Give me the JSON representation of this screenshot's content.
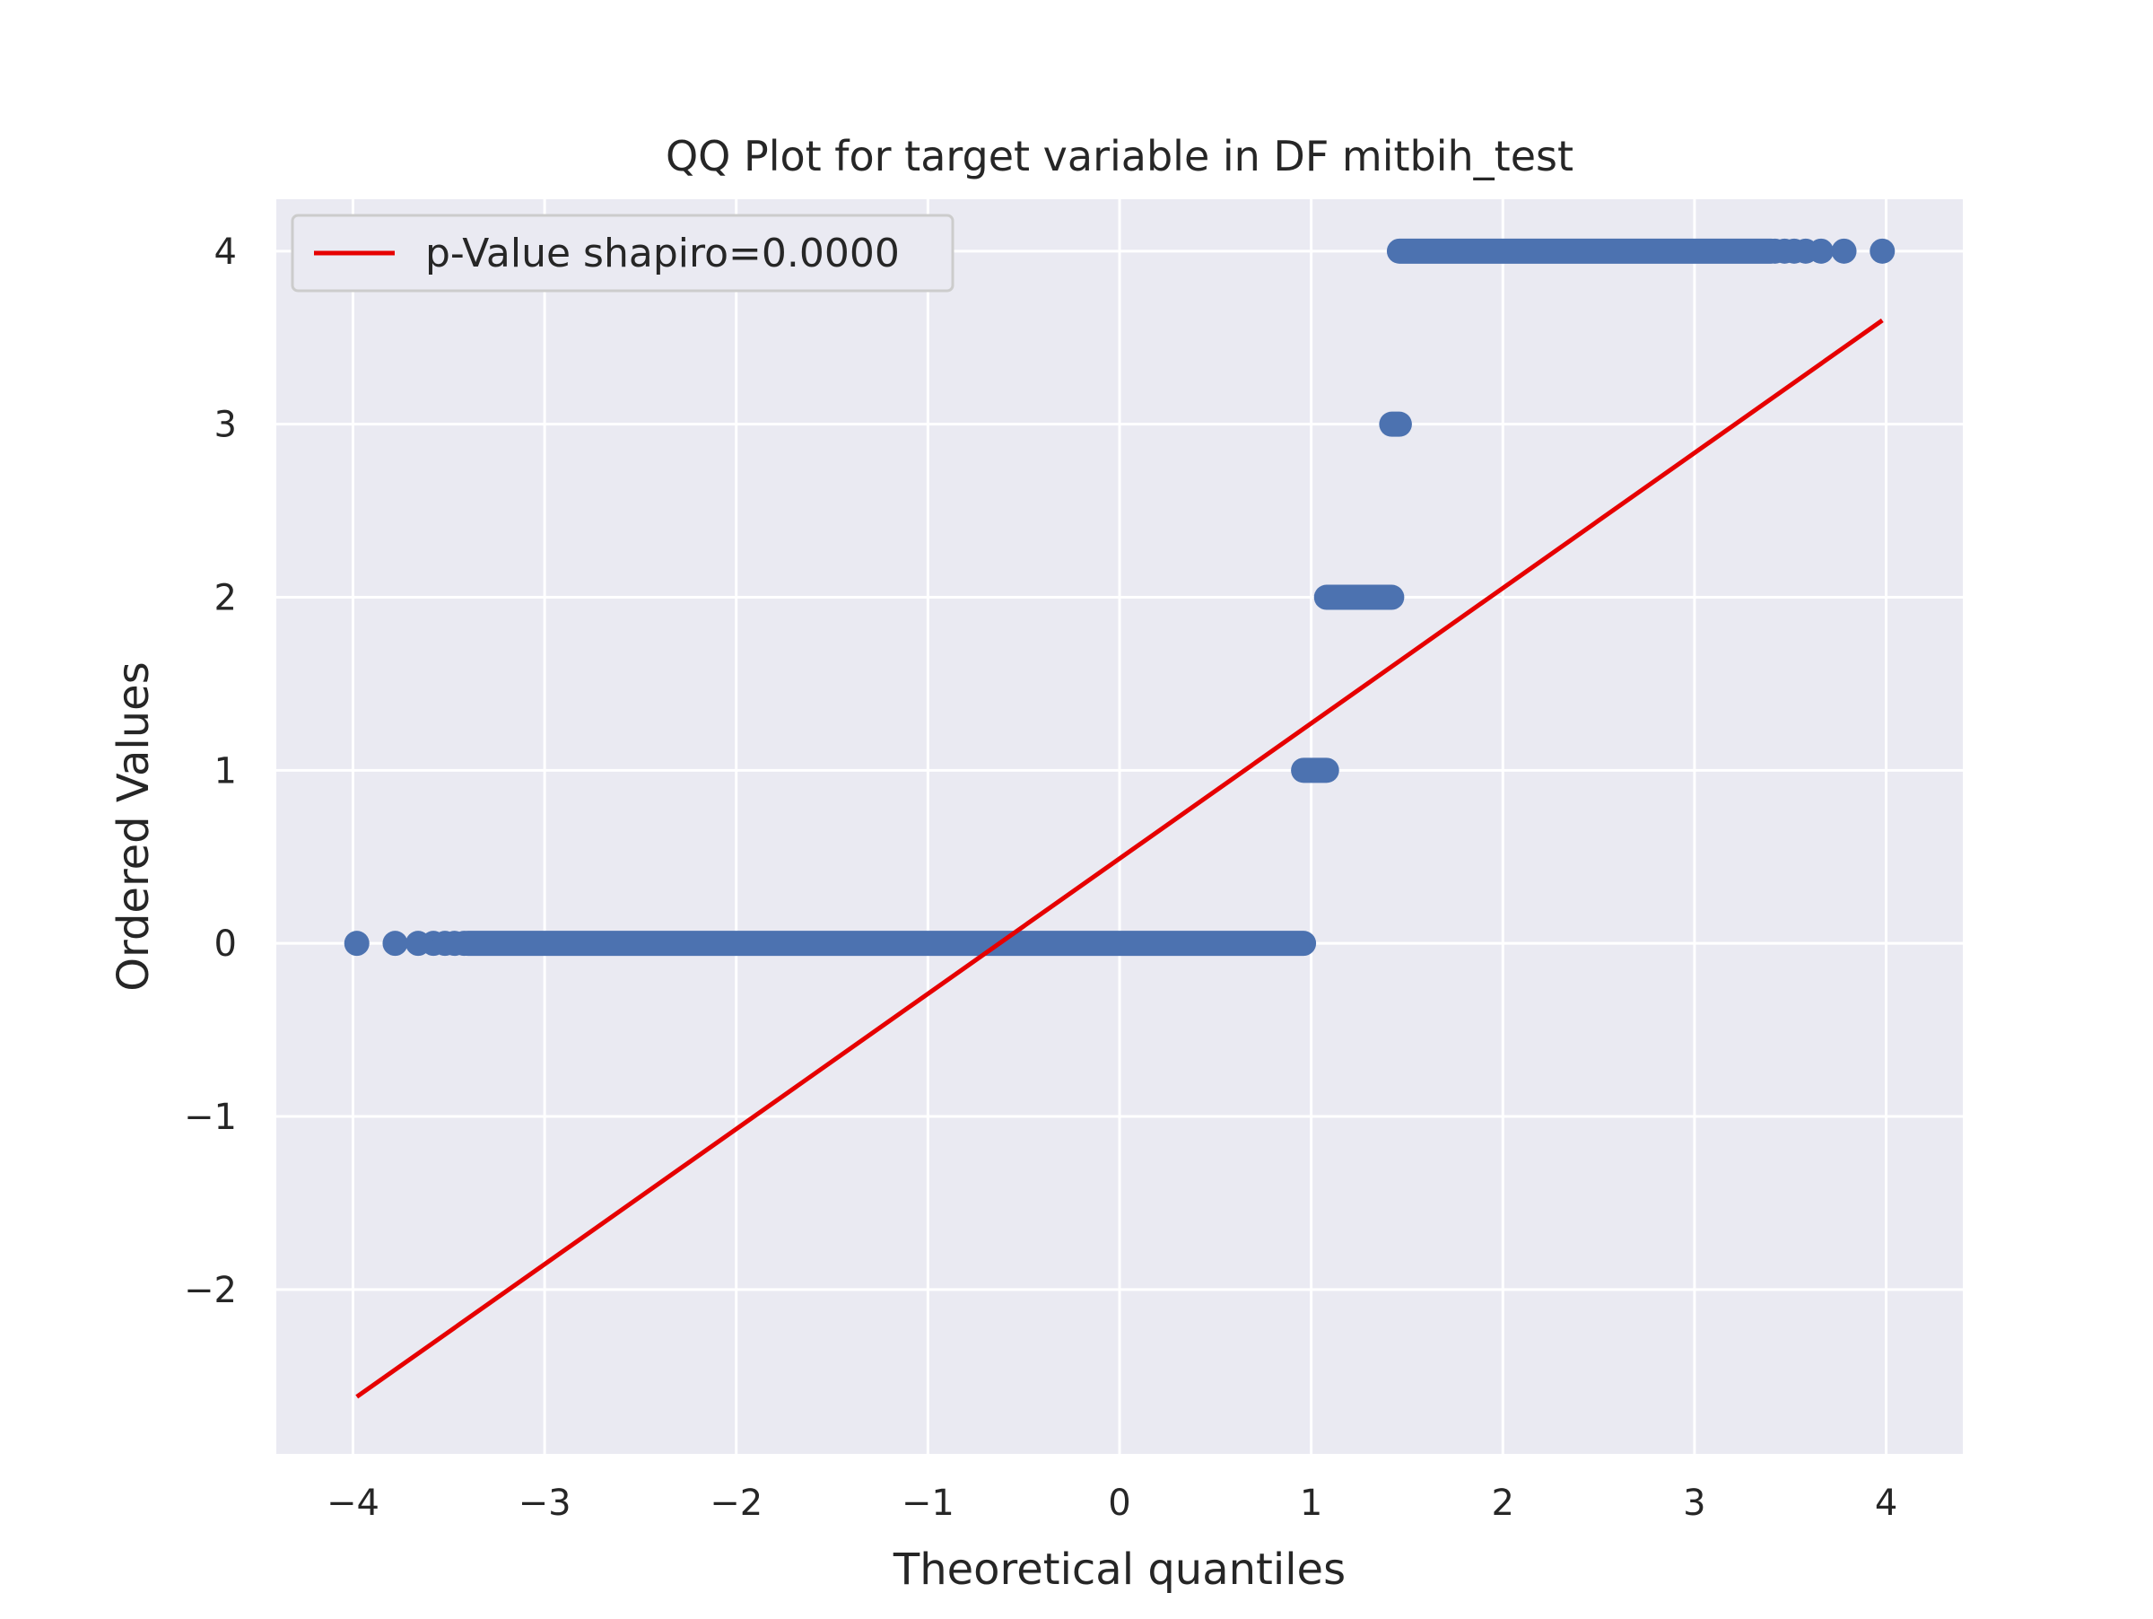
{
  "chart_data": {
    "type": "scatter",
    "title": "QQ Plot for target variable in DF mitbih_test",
    "xlabel": "Theoretical quantiles",
    "ylabel": "Ordered Values",
    "xlim": [
      -4.4,
      4.4
    ],
    "ylim": [
      -2.95,
      4.3
    ],
    "xticks": [
      -4,
      -3,
      -2,
      -1,
      0,
      1,
      2,
      3,
      4
    ],
    "xtick_labels": [
      "−4",
      "−3",
      "−2",
      "−1",
      "0",
      "1",
      "2",
      "3",
      "4"
    ],
    "yticks": [
      -2,
      -1,
      0,
      1,
      2,
      3,
      4
    ],
    "ytick_labels": [
      "−2",
      "−1",
      "0",
      "1",
      "2",
      "3",
      "4"
    ],
    "grid": true,
    "background": "#eaeaf2",
    "legend": {
      "position": "top-left",
      "entries": [
        "p-Value shapiro=0.0000"
      ]
    },
    "series": [
      {
        "type": "scatter",
        "color": "#4c72b0",
        "points": [
          {
            "x": -3.98,
            "y": 0
          },
          {
            "x": -3.78,
            "y": 0
          },
          {
            "x": -3.66,
            "y": 0
          },
          {
            "x": -3.58,
            "y": 0
          },
          {
            "x": -3.52,
            "y": 0
          },
          {
            "x": -3.47,
            "y": 0
          },
          {
            "x": -3.42,
            "y": 0
          },
          {
            "x": 3.42,
            "y": 4
          },
          {
            "x": 3.47,
            "y": 4
          },
          {
            "x": 3.52,
            "y": 4
          },
          {
            "x": 3.58,
            "y": 4
          },
          {
            "x": 3.66,
            "y": 4
          },
          {
            "x": 3.78,
            "y": 4
          },
          {
            "x": 3.98,
            "y": 4
          }
        ],
        "runs": [
          {
            "x_start": -3.4,
            "x_end": 0.96,
            "y": 0
          },
          {
            "x_start": 0.96,
            "x_end": 1.08,
            "y": 1
          },
          {
            "x_start": 1.08,
            "x_end": 1.42,
            "y": 2
          },
          {
            "x_start": 1.42,
            "x_end": 1.46,
            "y": 3
          },
          {
            "x_start": 1.46,
            "x_end": 3.4,
            "y": 4
          }
        ]
      },
      {
        "type": "line",
        "name": "p-Value shapiro=0.0000",
        "color": "#e60000",
        "x": [
          -3.98,
          3.98
        ],
        "y": [
          -2.62,
          3.6
        ]
      }
    ]
  }
}
